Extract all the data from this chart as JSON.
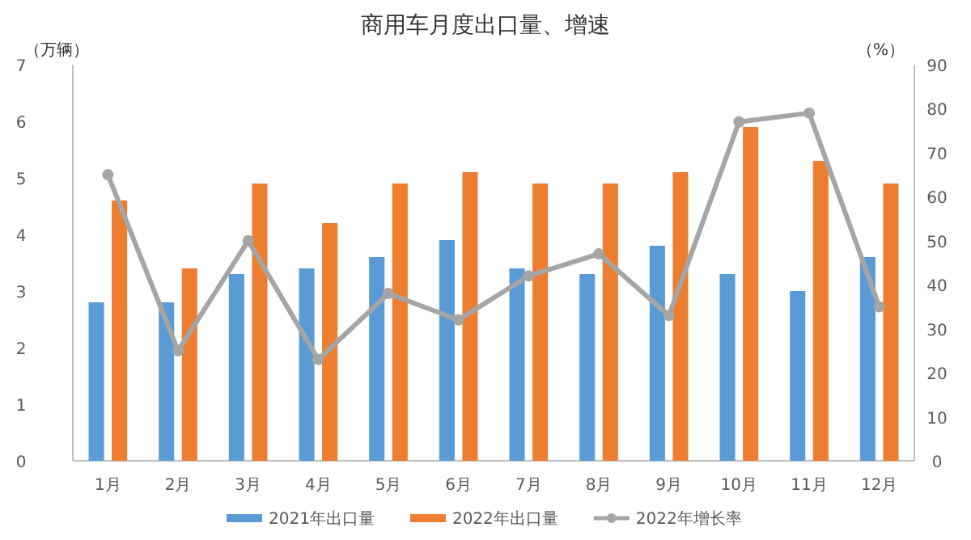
{
  "chart_data": {
    "type": "bar",
    "title": "商用车月度出口量、增速",
    "ylabel": "（万辆）",
    "y2label": "（%）",
    "categories": [
      "1月",
      "2月",
      "3月",
      "4月",
      "5月",
      "6月",
      "7月",
      "8月",
      "9月",
      "10月",
      "11月",
      "12月"
    ],
    "series": [
      {
        "name": "2021年出口量",
        "color": "#5b9bd5",
        "values": [
          2.8,
          2.8,
          3.3,
          3.4,
          3.6,
          3.9,
          3.4,
          3.3,
          3.8,
          3.3,
          3.0,
          3.6
        ]
      },
      {
        "name": "2022年出口量",
        "color": "#ed7d31",
        "values": [
          4.6,
          3.4,
          4.9,
          4.2,
          4.9,
          5.1,
          4.9,
          4.9,
          5.1,
          5.9,
          5.3,
          4.9
        ]
      },
      {
        "name": "2022年增长率",
        "type": "line",
        "axis": "y2",
        "color": "#a5a5a5",
        "marker": "circle",
        "values": [
          65,
          25,
          50,
          23,
          38,
          32,
          42,
          47,
          33,
          77,
          79,
          35
        ]
      }
    ],
    "ylim": [
      0,
      7
    ],
    "yticks": [
      0,
      1,
      2,
      3,
      4,
      5,
      6,
      7
    ],
    "y2lim": [
      0,
      90
    ],
    "y2ticks": [
      0,
      10,
      20,
      30,
      40,
      50,
      60,
      70,
      80,
      90
    ],
    "grid": false,
    "legend": "bottom"
  }
}
